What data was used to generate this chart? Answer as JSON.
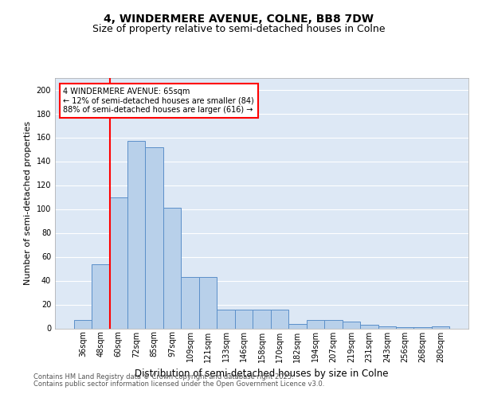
{
  "title": "4, WINDERMERE AVENUE, COLNE, BB8 7DW",
  "subtitle": "Size of property relative to semi-detached houses in Colne",
  "xlabel": "Distribution of semi-detached houses by size in Colne",
  "ylabel": "Number of semi-detached properties",
  "categories": [
    "36sqm",
    "48sqm",
    "60sqm",
    "72sqm",
    "85sqm",
    "97sqm",
    "109sqm",
    "121sqm",
    "133sqm",
    "146sqm",
    "158sqm",
    "170sqm",
    "182sqm",
    "194sqm",
    "207sqm",
    "219sqm",
    "231sqm",
    "243sqm",
    "256sqm",
    "268sqm",
    "280sqm"
  ],
  "values": [
    7,
    54,
    110,
    157,
    152,
    101,
    43,
    43,
    16,
    16,
    16,
    16,
    4,
    7,
    7,
    6,
    3,
    2,
    1,
    1,
    2
  ],
  "bar_color": "#b8d0ea",
  "bar_edge_color": "#5b8fc9",
  "highlight_line_color": "red",
  "highlight_line_index": 2,
  "annotation_title": "4 WINDERMERE AVENUE: 65sqm",
  "annotation_smaller": "← 12% of semi-detached houses are smaller (84)",
  "annotation_larger": "88% of semi-detached houses are larger (616) →",
  "ylim": [
    0,
    210
  ],
  "yticks": [
    0,
    20,
    40,
    60,
    80,
    100,
    120,
    140,
    160,
    180,
    200
  ],
  "background_color": "#dde8f5",
  "grid_color": "#ffffff",
  "footer1": "Contains HM Land Registry data © Crown copyright and database right 2025.",
  "footer2": "Contains public sector information licensed under the Open Government Licence v3.0.",
  "title_fontsize": 10,
  "subtitle_fontsize": 9,
  "tick_fontsize": 7,
  "ylabel_fontsize": 8,
  "xlabel_fontsize": 8.5,
  "annotation_fontsize": 7,
  "footer_fontsize": 6
}
